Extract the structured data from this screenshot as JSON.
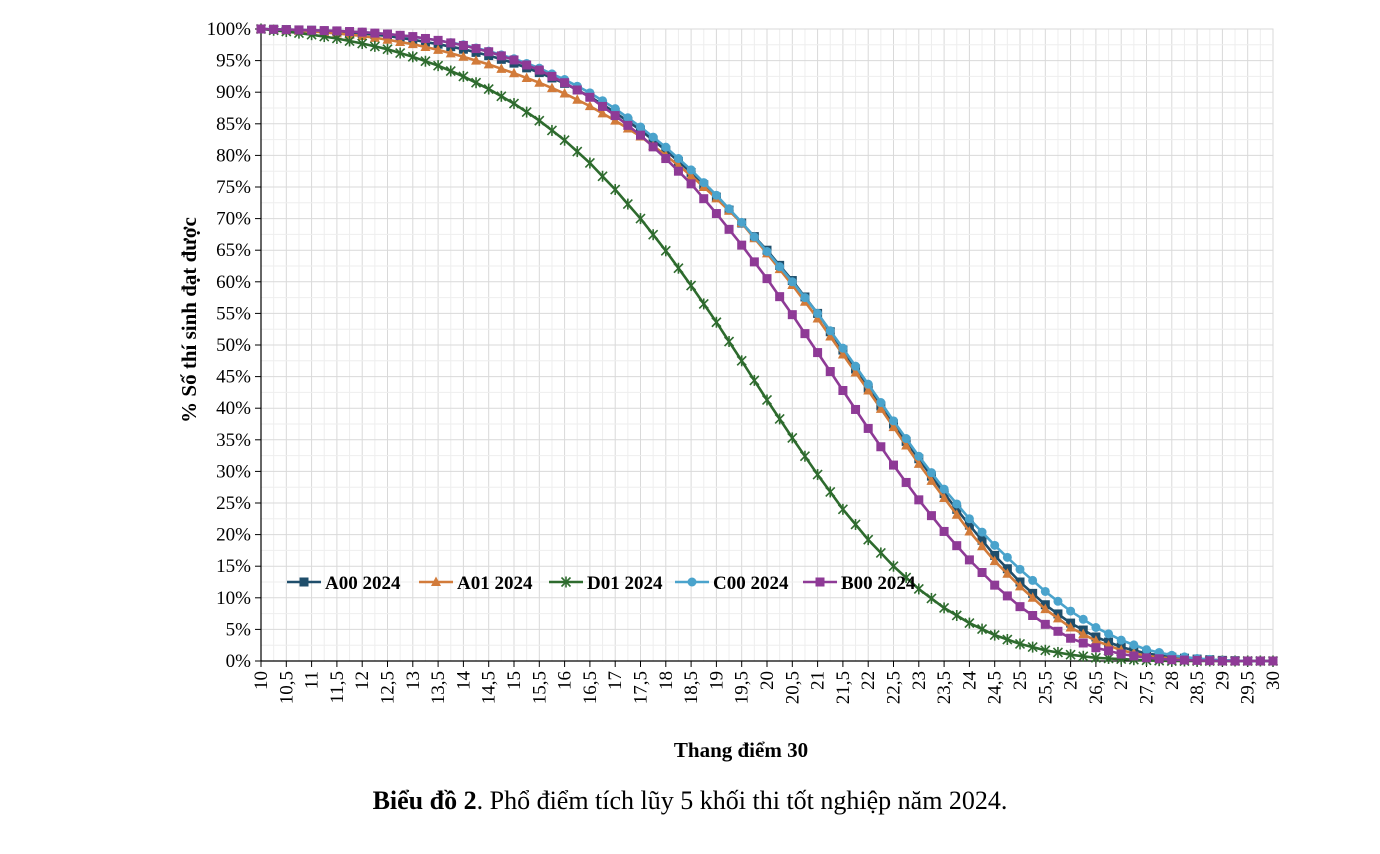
{
  "chart_data": {
    "type": "line",
    "title": "",
    "xlabel": "Thang điểm 30",
    "ylabel": "% Số thí sinh đạt được",
    "x": [
      10,
      10.5,
      11,
      11.5,
      12,
      12.5,
      13,
      13.5,
      14,
      14.5,
      15,
      15.5,
      16,
      16.5,
      17,
      17.5,
      18,
      18.5,
      19,
      19.5,
      20,
      20.5,
      21,
      21.5,
      22,
      22.5,
      23,
      23.5,
      24,
      24.5,
      25,
      25.5,
      26,
      26.5,
      27,
      27.5,
      28,
      28.5,
      29,
      29.5,
      30
    ],
    "x_tick_labels": [
      "10",
      "10,5",
      "11",
      "11,5",
      "12",
      "12,5",
      "13",
      "13,5",
      "14",
      "14,5",
      "15",
      "15,5",
      "16",
      "16,5",
      "17",
      "17,5",
      "18",
      "18,5",
      "19",
      "19,5",
      "20",
      "20,5",
      "21",
      "21,5",
      "22",
      "22,5",
      "23",
      "23,5",
      "24",
      "24,5",
      "25",
      "25,5",
      "26",
      "26,5",
      "27",
      "27,5",
      "28",
      "28,5",
      "29",
      "29,5",
      "30"
    ],
    "y_tick_labels": [
      "0%",
      "5%",
      "10%",
      "15%",
      "20%",
      "25%",
      "30%",
      "35%",
      "40%",
      "45%",
      "50%",
      "55%",
      "60%",
      "65%",
      "70%",
      "75%",
      "80%",
      "85%",
      "90%",
      "95%",
      "100%"
    ],
    "xlim": [
      10,
      30
    ],
    "ylim": [
      0,
      100
    ],
    "y_unit": "%",
    "grid": true,
    "legend_position": "inside-bottom-left",
    "series": [
      {
        "name": "A00 2024",
        "color": "#1f4e6b",
        "marker": "square",
        "values": [
          100,
          99.9,
          99.8,
          99.6,
          99.3,
          98.9,
          98.3,
          97.6,
          96.8,
          95.8,
          94.6,
          93.1,
          91.4,
          89.3,
          86.8,
          84.0,
          80.8,
          77.3,
          73.4,
          69.3,
          65.0,
          60.2,
          55.0,
          49.2,
          43.2,
          37.5,
          32.0,
          26.5,
          21.5,
          16.7,
          12.5,
          8.9,
          6.0,
          3.8,
          2.2,
          1.2,
          0.6,
          0.3,
          0.1,
          0.0,
          0.0
        ]
      },
      {
        "name": "A01 2024",
        "color": "#d27b3a",
        "marker": "triangle",
        "values": [
          100,
          99.8,
          99.6,
          99.3,
          98.9,
          98.3,
          97.6,
          96.7,
          95.6,
          94.4,
          93.0,
          91.5,
          89.8,
          87.8,
          85.5,
          83.0,
          80.0,
          76.8,
          73.2,
          69.3,
          64.5,
          59.5,
          54.2,
          48.5,
          42.8,
          37.0,
          31.2,
          25.8,
          20.5,
          15.8,
          11.8,
          8.2,
          5.3,
          3.2,
          1.7,
          0.8,
          0.4,
          0.1,
          0.0,
          0.0,
          0.0
        ]
      },
      {
        "name": "D01 2024",
        "color": "#2e6b2e",
        "marker": "star",
        "values": [
          100,
          99.6,
          99.1,
          98.5,
          97.7,
          96.8,
          95.6,
          94.2,
          92.5,
          90.5,
          88.2,
          85.5,
          82.4,
          78.8,
          74.6,
          70.0,
          64.9,
          59.4,
          53.6,
          47.5,
          41.3,
          35.3,
          29.5,
          24.0,
          19.2,
          15.0,
          11.4,
          8.4,
          6.0,
          4.1,
          2.7,
          1.7,
          1.0,
          0.5,
          0.3,
          0.1,
          0.0,
          0.0,
          0.0,
          0.0,
          0.0
        ]
      },
      {
        "name": "C00 2024",
        "color": "#4aa3cc",
        "marker": "circle",
        "values": [
          100,
          99.9,
          99.8,
          99.7,
          99.5,
          99.2,
          98.8,
          98.2,
          97.5,
          96.5,
          95.3,
          93.8,
          92.0,
          89.9,
          87.4,
          84.5,
          81.3,
          77.7,
          73.7,
          69.4,
          64.8,
          60.0,
          55.0,
          49.5,
          43.8,
          38.0,
          32.4,
          27.2,
          22.5,
          18.3,
          14.5,
          11.0,
          7.9,
          5.3,
          3.3,
          1.8,
          0.9,
          0.4,
          0.1,
          0.0,
          0.0
        ]
      },
      {
        "name": "B00 2024",
        "color": "#8e3a96",
        "marker": "square",
        "values": [
          100,
          99.9,
          99.8,
          99.7,
          99.5,
          99.2,
          98.8,
          98.2,
          97.4,
          96.4,
          95.1,
          93.5,
          91.5,
          89.2,
          86.3,
          83.2,
          79.5,
          75.5,
          70.8,
          65.8,
          60.5,
          54.8,
          48.8,
          42.8,
          36.8,
          31.0,
          25.5,
          20.5,
          16.0,
          12.0,
          8.6,
          5.8,
          3.6,
          2.1,
          1.1,
          0.5,
          0.2,
          0.1,
          0.0,
          0.0,
          0.0
        ]
      }
    ]
  },
  "caption": {
    "bold": "Biểu đồ 2",
    "rest": ". Phổ điểm tích lũy 5 khối thi tốt nghiệp năm 2024."
  }
}
